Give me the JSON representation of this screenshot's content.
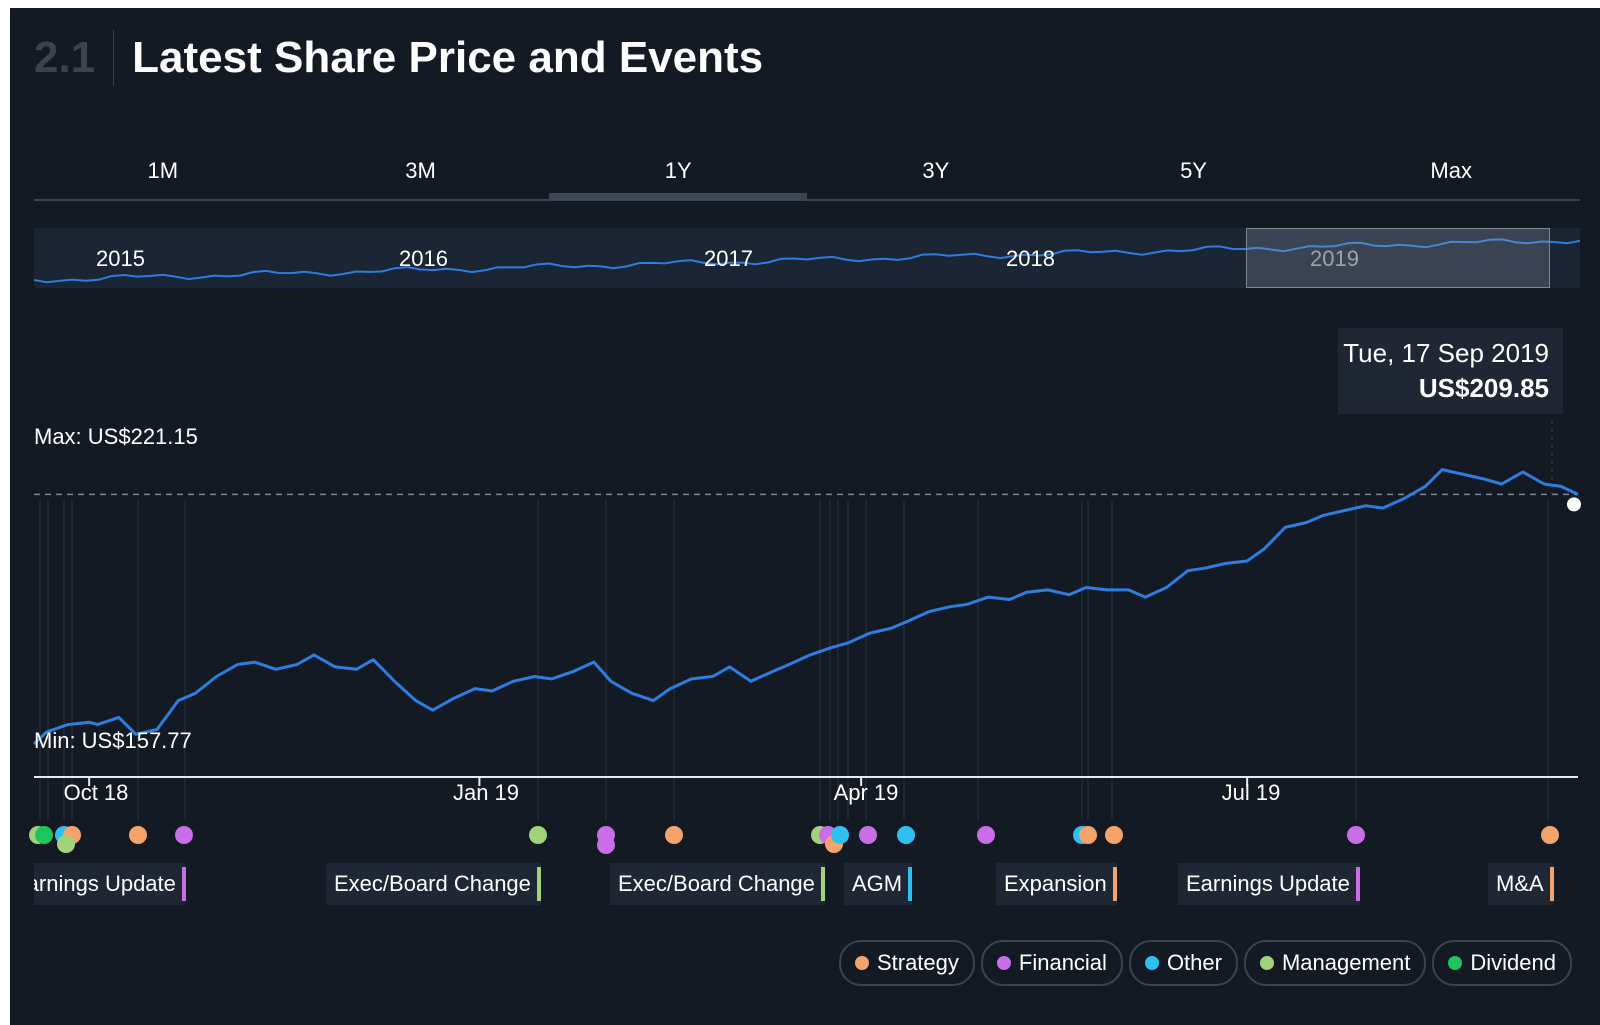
{
  "section": {
    "number": "2.1",
    "title": "Latest Share Price and Events"
  },
  "tabs": [
    "1M",
    "3M",
    "1Y",
    "3Y",
    "5Y",
    "Max"
  ],
  "active_tab": "1Y",
  "navigator": {
    "years": [
      "2015",
      "2016",
      "2017",
      "2018",
      "2019"
    ],
    "selected_year": "2019"
  },
  "tooltip": {
    "date": "Tue, 17 Sep 2019",
    "price": "US$209.85"
  },
  "max_label": "Max: US$221.15",
  "min_label": "Min: US$157.77",
  "colors": {
    "Strategy": "#f4a46a",
    "Financial": "#c86ee6",
    "Other": "#2ec1f0",
    "Management": "#a3d27d",
    "Dividend": "#1fc45e",
    "line": "#2f7de0"
  },
  "event_labels": [
    {
      "text": "Earnings Update",
      "category": "Financial"
    },
    {
      "text": "Exec/Board Change",
      "category": "Management"
    },
    {
      "text": "Exec/Board Change",
      "category": "Management"
    },
    {
      "text": "AGM",
      "category": "Other"
    },
    {
      "text": "Expansion",
      "category": "Strategy"
    },
    {
      "text": "Earnings Update",
      "category": "Financial"
    },
    {
      "text": "M&A",
      "category": "Strategy"
    }
  ],
  "legend": [
    "Strategy",
    "Financial",
    "Other",
    "Management",
    "Dividend"
  ],
  "chart_data": {
    "type": "line",
    "currency": "US$",
    "x_ticks": [
      "Oct 18",
      "Jan 19",
      "Apr 19",
      "Jul 19"
    ],
    "x_tick_dates": [
      "2018-10-01",
      "2019-01-01",
      "2019-04-01",
      "2019-07-01"
    ],
    "x_range": [
      "2018-09-18",
      "2019-09-17"
    ],
    "y_range": [
      157.77,
      221.15
    ],
    "max_value": 221.15,
    "min_value": 157.77,
    "reference_line": 209.85,
    "series": [
      {
        "x": [
          "2018-09-18",
          "2018-09-21",
          "2018-09-26",
          "2018-10-01",
          "2018-10-03",
          "2018-10-08",
          "2018-10-12",
          "2018-10-17",
          "2018-10-22",
          "2018-10-26",
          "2018-10-31",
          "2018-11-05",
          "2018-11-09",
          "2018-11-14",
          "2018-11-19",
          "2018-11-23",
          "2018-11-28",
          "2018-12-03",
          "2018-12-07",
          "2018-12-12",
          "2018-12-17",
          "2018-12-21",
          "2018-12-26",
          "2018-12-31",
          "2019-01-04",
          "2019-01-09",
          "2019-01-14",
          "2019-01-18",
          "2019-01-23",
          "2019-01-28",
          "2019-02-01",
          "2019-02-06",
          "2019-02-11",
          "2019-02-15",
          "2019-02-20",
          "2019-02-25",
          "2019-03-01",
          "2019-03-06",
          "2019-03-11",
          "2019-03-15",
          "2019-03-20",
          "2019-03-25",
          "2019-03-29",
          "2019-04-03",
          "2019-04-08",
          "2019-04-12",
          "2019-04-17",
          "2019-04-22",
          "2019-04-26",
          "2019-05-01",
          "2019-05-06",
          "2019-05-10",
          "2019-05-15",
          "2019-05-20",
          "2019-05-24",
          "2019-05-29",
          "2019-06-03",
          "2019-06-07",
          "2019-06-12",
          "2019-06-17",
          "2019-06-21",
          "2019-06-26",
          "2019-07-01",
          "2019-07-05",
          "2019-07-10",
          "2019-07-15",
          "2019-07-19",
          "2019-07-24",
          "2019-07-29",
          "2019-08-02",
          "2019-08-07",
          "2019-08-12",
          "2019-08-16",
          "2019-08-21",
          "2019-08-26",
          "2019-08-30",
          "2019-09-04",
          "2019-09-09",
          "2019-09-13",
          "2019-09-17"
        ],
        "values": [
          158.0,
          160.5,
          162.0,
          162.5,
          162.0,
          163.5,
          160.0,
          161.0,
          167.0,
          168.5,
          172.0,
          174.5,
          175.0,
          173.5,
          174.5,
          176.5,
          174.0,
          173.5,
          175.5,
          171.0,
          167.0,
          165.0,
          167.5,
          169.5,
          169.0,
          171.0,
          172.0,
          171.5,
          173.0,
          175.0,
          171.0,
          168.5,
          167.0,
          169.5,
          171.5,
          172.0,
          174.0,
          171.0,
          173.0,
          174.5,
          176.5,
          178.0,
          179.0,
          181.0,
          182.0,
          183.5,
          185.5,
          186.5,
          187.0,
          188.5,
          188.0,
          189.5,
          190.0,
          189.0,
          190.5,
          190.0,
          190.0,
          188.5,
          190.5,
          194.0,
          194.5,
          195.5,
          196.0,
          198.5,
          203.0,
          204.0,
          205.5,
          206.5,
          207.5,
          207.0,
          209.0,
          211.5,
          215.0,
          214.0,
          213.0,
          212.0,
          214.5,
          212.0,
          211.5,
          209.85
        ]
      }
    ]
  }
}
